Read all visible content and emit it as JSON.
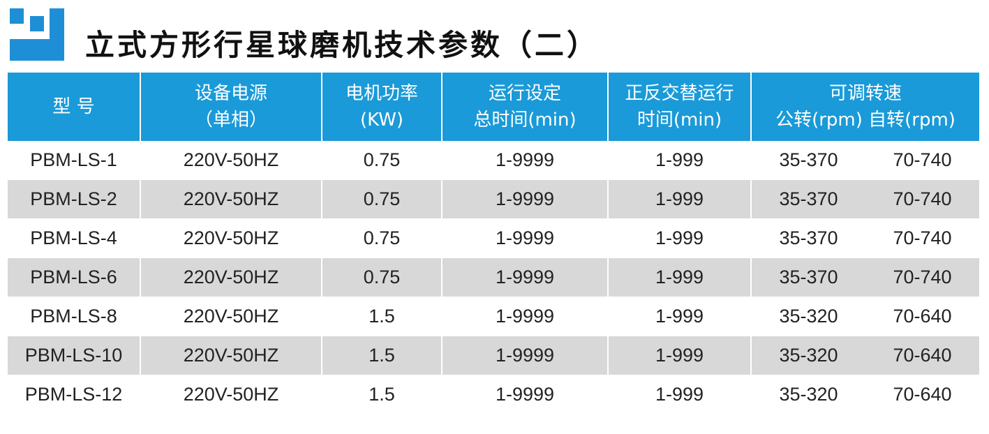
{
  "title": "立式方形行星球磨机技术参数（二）",
  "colors": {
    "header_bg": "#1a9ad8",
    "stripe_bg": "#d8d8d9",
    "logo": "#1e8fd6"
  },
  "logo": {
    "icon": "brand-logo-icon"
  },
  "table": {
    "headers": {
      "model": "型 号",
      "power_line1": "设备电源",
      "power_line2": "（单相）",
      "motor_line1": "电机功率",
      "motor_line2": "(KW)",
      "total_time_line1": "运行设定",
      "total_time_line2": "总时间(min)",
      "alt_time_line1": "正反交替运行",
      "alt_time_line2": "时间(min)",
      "speed_line1": "可调转速",
      "speed_revolution": "公转(rpm)",
      "speed_rotation": "自转(rpm)"
    },
    "rows": [
      {
        "model": "PBM-LS-1",
        "power": "220V-50HZ",
        "motor": "0.75",
        "total_time": "1-9999",
        "alt_time": "1-999",
        "revolution": "35-370",
        "rotation": "70-740"
      },
      {
        "model": "PBM-LS-2",
        "power": "220V-50HZ",
        "motor": "0.75",
        "total_time": "1-9999",
        "alt_time": "1-999",
        "revolution": "35-370",
        "rotation": "70-740"
      },
      {
        "model": "PBM-LS-4",
        "power": "220V-50HZ",
        "motor": "0.75",
        "total_time": "1-9999",
        "alt_time": "1-999",
        "revolution": "35-370",
        "rotation": "70-740"
      },
      {
        "model": "PBM-LS-6",
        "power": "220V-50HZ",
        "motor": "0.75",
        "total_time": "1-9999",
        "alt_time": "1-999",
        "revolution": "35-370",
        "rotation": "70-740"
      },
      {
        "model": "PBM-LS-8",
        "power": "220V-50HZ",
        "motor": "1.5",
        "total_time": "1-9999",
        "alt_time": "1-999",
        "revolution": "35-320",
        "rotation": "70-640"
      },
      {
        "model": "PBM-LS-10",
        "power": "220V-50HZ",
        "motor": "1.5",
        "total_time": "1-9999",
        "alt_time": "1-999",
        "revolution": "35-320",
        "rotation": "70-640"
      },
      {
        "model": "PBM-LS-12",
        "power": "220V-50HZ",
        "motor": "1.5",
        "total_time": "1-9999",
        "alt_time": "1-999",
        "revolution": "35-320",
        "rotation": "70-640"
      }
    ]
  }
}
